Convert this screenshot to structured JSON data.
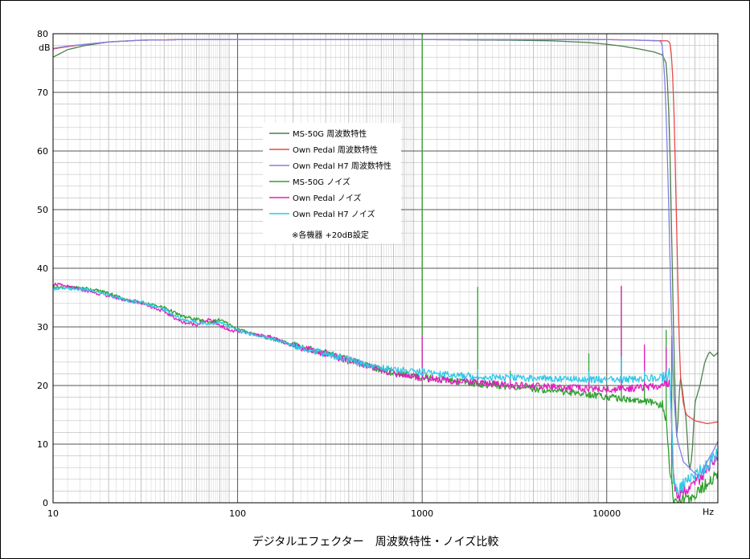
{
  "chart_data": {
    "type": "line",
    "title": "デジタルエフェクター　周波数特性・ノイズ比較",
    "xlabel": "Hz",
    "ylabel": "dB",
    "xscale": "log",
    "xlim": [
      10,
      40000
    ],
    "ylim": [
      0,
      80
    ],
    "x_ticks": [
      "10",
      "100",
      "1000",
      "10000"
    ],
    "y_ticks": [
      "0",
      "10",
      "20",
      "30",
      "40",
      "50",
      "60",
      "70",
      "80"
    ],
    "grid": true,
    "legend_position": "upper-center",
    "note": "※各機器 +20dB設定",
    "series": [
      {
        "name": "MS-50G 周波数特性",
        "color": "#4e7f4e",
        "points": [
          [
            10,
            76.0
          ],
          [
            12,
            77.3
          ],
          [
            15,
            78.0
          ],
          [
            20,
            78.6
          ],
          [
            30,
            78.9
          ],
          [
            50,
            79.0
          ],
          [
            100,
            79.0
          ],
          [
            300,
            79.0
          ],
          [
            1000,
            79.0
          ],
          [
            3000,
            78.9
          ],
          [
            5000,
            78.8
          ],
          [
            8000,
            78.5
          ],
          [
            10000,
            78.2
          ],
          [
            12000,
            77.9
          ],
          [
            15000,
            77.4
          ],
          [
            18000,
            76.9
          ],
          [
            20000,
            76.4
          ],
          [
            21000,
            75.0
          ],
          [
            21500,
            70.0
          ],
          [
            22000,
            60.0
          ],
          [
            22500,
            45.0
          ],
          [
            23000,
            30.0
          ],
          [
            23500,
            18.0
          ],
          [
            24000,
            10.0
          ],
          [
            25000,
            22.0
          ],
          [
            27000,
            14.0
          ],
          [
            28000,
            5.0
          ],
          [
            29000,
            8.0
          ],
          [
            30000,
            17.0
          ],
          [
            32000,
            20.0
          ],
          [
            34000,
            24.0
          ],
          [
            36000,
            25.8
          ],
          [
            38000,
            25.0
          ],
          [
            40000,
            25.6
          ]
        ]
      },
      {
        "name": "Own Pedal 周波数特性",
        "color": "#e84848",
        "points": [
          [
            10,
            77.4
          ],
          [
            12,
            77.8
          ],
          [
            15,
            78.2
          ],
          [
            20,
            78.6
          ],
          [
            30,
            78.9
          ],
          [
            50,
            79.0
          ],
          [
            100,
            79.0
          ],
          [
            300,
            79.0
          ],
          [
            1000,
            79.0
          ],
          [
            3000,
            79.0
          ],
          [
            10000,
            79.0
          ],
          [
            15000,
            78.9
          ],
          [
            20000,
            78.8
          ],
          [
            21500,
            78.8
          ],
          [
            22000,
            78.4
          ],
          [
            22500,
            76.0
          ],
          [
            23000,
            70.0
          ],
          [
            23500,
            58.0
          ],
          [
            24000,
            45.0
          ],
          [
            24500,
            32.0
          ],
          [
            25000,
            22.0
          ],
          [
            26000,
            17.0
          ],
          [
            27000,
            15.0
          ],
          [
            30000,
            14.0
          ],
          [
            35000,
            13.5
          ],
          [
            40000,
            13.8
          ]
        ]
      },
      {
        "name": "Own Pedal H7 周波数特性",
        "color": "#8080e8",
        "points": [
          [
            10,
            77.5
          ],
          [
            12,
            77.9
          ],
          [
            15,
            78.2
          ],
          [
            20,
            78.6
          ],
          [
            30,
            78.9
          ],
          [
            50,
            79.0
          ],
          [
            100,
            79.0
          ],
          [
            300,
            79.0
          ],
          [
            1000,
            79.0
          ],
          [
            3000,
            79.0
          ],
          [
            10000,
            79.0
          ],
          [
            15000,
            78.9
          ],
          [
            18000,
            78.8
          ],
          [
            19500,
            78.8
          ],
          [
            20000,
            78.0
          ],
          [
            20500,
            74.0
          ],
          [
            21000,
            66.0
          ],
          [
            21500,
            55.0
          ],
          [
            22000,
            42.0
          ],
          [
            22500,
            30.0
          ],
          [
            23000,
            19.0
          ],
          [
            24000,
            11.0
          ],
          [
            26000,
            7.0
          ],
          [
            28000,
            6.0
          ],
          [
            30000,
            5.0
          ],
          [
            32000,
            4.5
          ],
          [
            35000,
            7.0
          ],
          [
            38000,
            9.0
          ],
          [
            40000,
            10.5
          ]
        ]
      },
      {
        "name": "MS-50G ノイズ",
        "color": "#2ea02e",
        "points": [
          [
            10,
            36.8
          ],
          [
            15,
            36.6
          ],
          [
            20,
            35.8
          ],
          [
            25,
            34.6
          ],
          [
            30,
            34.2
          ],
          [
            40,
            33.3
          ],
          [
            50,
            31.8
          ],
          [
            70,
            30.8
          ],
          [
            80,
            31.2
          ],
          [
            90,
            30.4
          ],
          [
            100,
            29.6
          ],
          [
            150,
            28.0
          ],
          [
            200,
            27.0
          ],
          [
            300,
            25.6
          ],
          [
            400,
            24.4
          ],
          [
            500,
            23.4
          ],
          [
            700,
            22.2
          ],
          [
            1000,
            21.5
          ],
          [
            1500,
            20.8
          ],
          [
            2000,
            20.3
          ],
          [
            3000,
            19.8
          ],
          [
            5000,
            19.2
          ],
          [
            7000,
            18.7
          ],
          [
            10000,
            18.1
          ],
          [
            12000,
            17.8
          ],
          [
            15000,
            17.4
          ],
          [
            18000,
            17.0
          ],
          [
            20000,
            16.5
          ],
          [
            21000,
            14.0
          ],
          [
            22000,
            6.0
          ],
          [
            23000,
            0.5
          ],
          [
            25000,
            0.2
          ],
          [
            28000,
            0.8
          ],
          [
            30000,
            1.5
          ],
          [
            33000,
            2.5
          ],
          [
            36000,
            3.5
          ],
          [
            40000,
            5.2
          ]
        ],
        "spikes": [
          [
            1000,
            80.0
          ],
          [
            2000,
            36.8
          ],
          [
            3000,
            22.5
          ],
          [
            8000,
            25.5
          ],
          [
            12000,
            36.8
          ],
          [
            16000,
            26.5
          ],
          [
            21000,
            29.5
          ],
          [
            22500,
            28.5
          ]
        ]
      },
      {
        "name": "Own Pedal ノイズ",
        "color": "#e020c0",
        "points": [
          [
            10,
            37.4
          ],
          [
            15,
            36.2
          ],
          [
            20,
            35.3
          ],
          [
            25,
            34.5
          ],
          [
            30,
            34.1
          ],
          [
            40,
            32.6
          ],
          [
            50,
            30.8
          ],
          [
            60,
            30.4
          ],
          [
            70,
            31.2
          ],
          [
            80,
            30.3
          ],
          [
            90,
            29.4
          ],
          [
            100,
            29.2
          ],
          [
            150,
            28.3
          ],
          [
            200,
            26.8
          ],
          [
            300,
            25.5
          ],
          [
            400,
            24.2
          ],
          [
            500,
            23.4
          ],
          [
            700,
            22.1
          ],
          [
            1000,
            21.3
          ],
          [
            1500,
            20.7
          ],
          [
            2000,
            20.5
          ],
          [
            3000,
            20.0
          ],
          [
            5000,
            19.8
          ],
          [
            7000,
            19.5
          ],
          [
            10000,
            19.3
          ],
          [
            12000,
            19.4
          ],
          [
            15000,
            19.6
          ],
          [
            18000,
            19.8
          ],
          [
            20000,
            20.0
          ],
          [
            22000,
            20.5
          ],
          [
            22500,
            14.0
          ],
          [
            23000,
            4.0
          ],
          [
            24000,
            1.0
          ],
          [
            26000,
            2.0
          ],
          [
            30000,
            3.5
          ],
          [
            35000,
            5.5
          ],
          [
            40000,
            7.5
          ]
        ],
        "spikes": [
          [
            1000,
            28.5
          ],
          [
            2000,
            22.5
          ],
          [
            3000,
            21.5
          ],
          [
            8000,
            22.0
          ],
          [
            12000,
            37.0
          ],
          [
            16000,
            27.0
          ],
          [
            21000,
            26.5
          ]
        ]
      },
      {
        "name": "Own Pedal H7 ノイズ",
        "color": "#30c8e8",
        "points": [
          [
            10,
            36.6
          ],
          [
            15,
            36.4
          ],
          [
            20,
            35.5
          ],
          [
            25,
            34.5
          ],
          [
            30,
            34.2
          ],
          [
            40,
            33.0
          ],
          [
            50,
            31.2
          ],
          [
            70,
            30.5
          ],
          [
            80,
            30.8
          ],
          [
            90,
            30.0
          ],
          [
            100,
            29.4
          ],
          [
            150,
            28.0
          ],
          [
            200,
            26.9
          ],
          [
            300,
            25.4
          ],
          [
            400,
            24.4
          ],
          [
            500,
            23.5
          ],
          [
            700,
            22.7
          ],
          [
            1000,
            22.3
          ],
          [
            1500,
            21.8
          ],
          [
            2000,
            21.5
          ],
          [
            3000,
            21.3
          ],
          [
            5000,
            21.2
          ],
          [
            7000,
            21.1
          ],
          [
            10000,
            21.0
          ],
          [
            12000,
            21.0
          ],
          [
            15000,
            21.1
          ],
          [
            18000,
            21.3
          ],
          [
            20000,
            21.5
          ],
          [
            22000,
            22.0
          ],
          [
            22500,
            14.0
          ],
          [
            23000,
            4.0
          ],
          [
            24000,
            2.0
          ],
          [
            26000,
            3.0
          ],
          [
            30000,
            4.5
          ],
          [
            35000,
            6.5
          ],
          [
            40000,
            8.5
          ]
        ],
        "spikes": [
          [
            1000,
            23.0
          ],
          [
            2000,
            22.8
          ],
          [
            3000,
            22.0
          ],
          [
            8000,
            22.5
          ],
          [
            12000,
            25.0
          ],
          [
            16000,
            22.5
          ],
          [
            21000,
            22.5
          ]
        ]
      }
    ]
  }
}
